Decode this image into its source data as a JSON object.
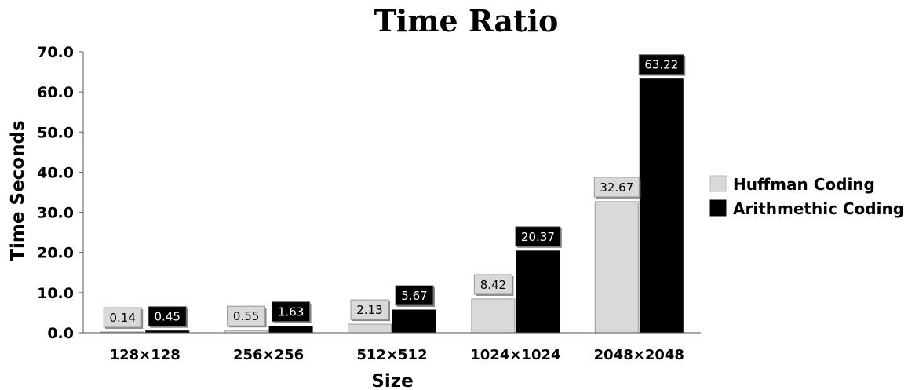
{
  "chart_data": {
    "type": "bar",
    "title": "Time Ratio",
    "xlabel": "Size",
    "ylabel": "Time Seconds",
    "ylim": [
      0,
      70
    ],
    "yticks": [
      "0.0",
      "10.0",
      "20.0",
      "30.0",
      "40.0",
      "50.0",
      "60.0",
      "70.0"
    ],
    "categories": [
      "128×128",
      "256×256",
      "512×512",
      "1024×1024",
      "2048×2048"
    ],
    "series": [
      {
        "name": "Huffman Coding",
        "color": "#d9d9d9",
        "values": [
          0.14,
          0.55,
          2.13,
          8.42,
          32.67
        ],
        "labels": [
          "0.14",
          "0.55",
          "2.13",
          "8.42",
          "32.67"
        ]
      },
      {
        "name": "Arithmethic Coding",
        "color": "#000000",
        "values": [
          0.45,
          1.63,
          5.67,
          20.37,
          63.22
        ],
        "labels": [
          "0.45",
          "1.63",
          "5.67",
          "20.37",
          "63.22"
        ]
      }
    ],
    "legend_position": "right",
    "grid": false
  }
}
